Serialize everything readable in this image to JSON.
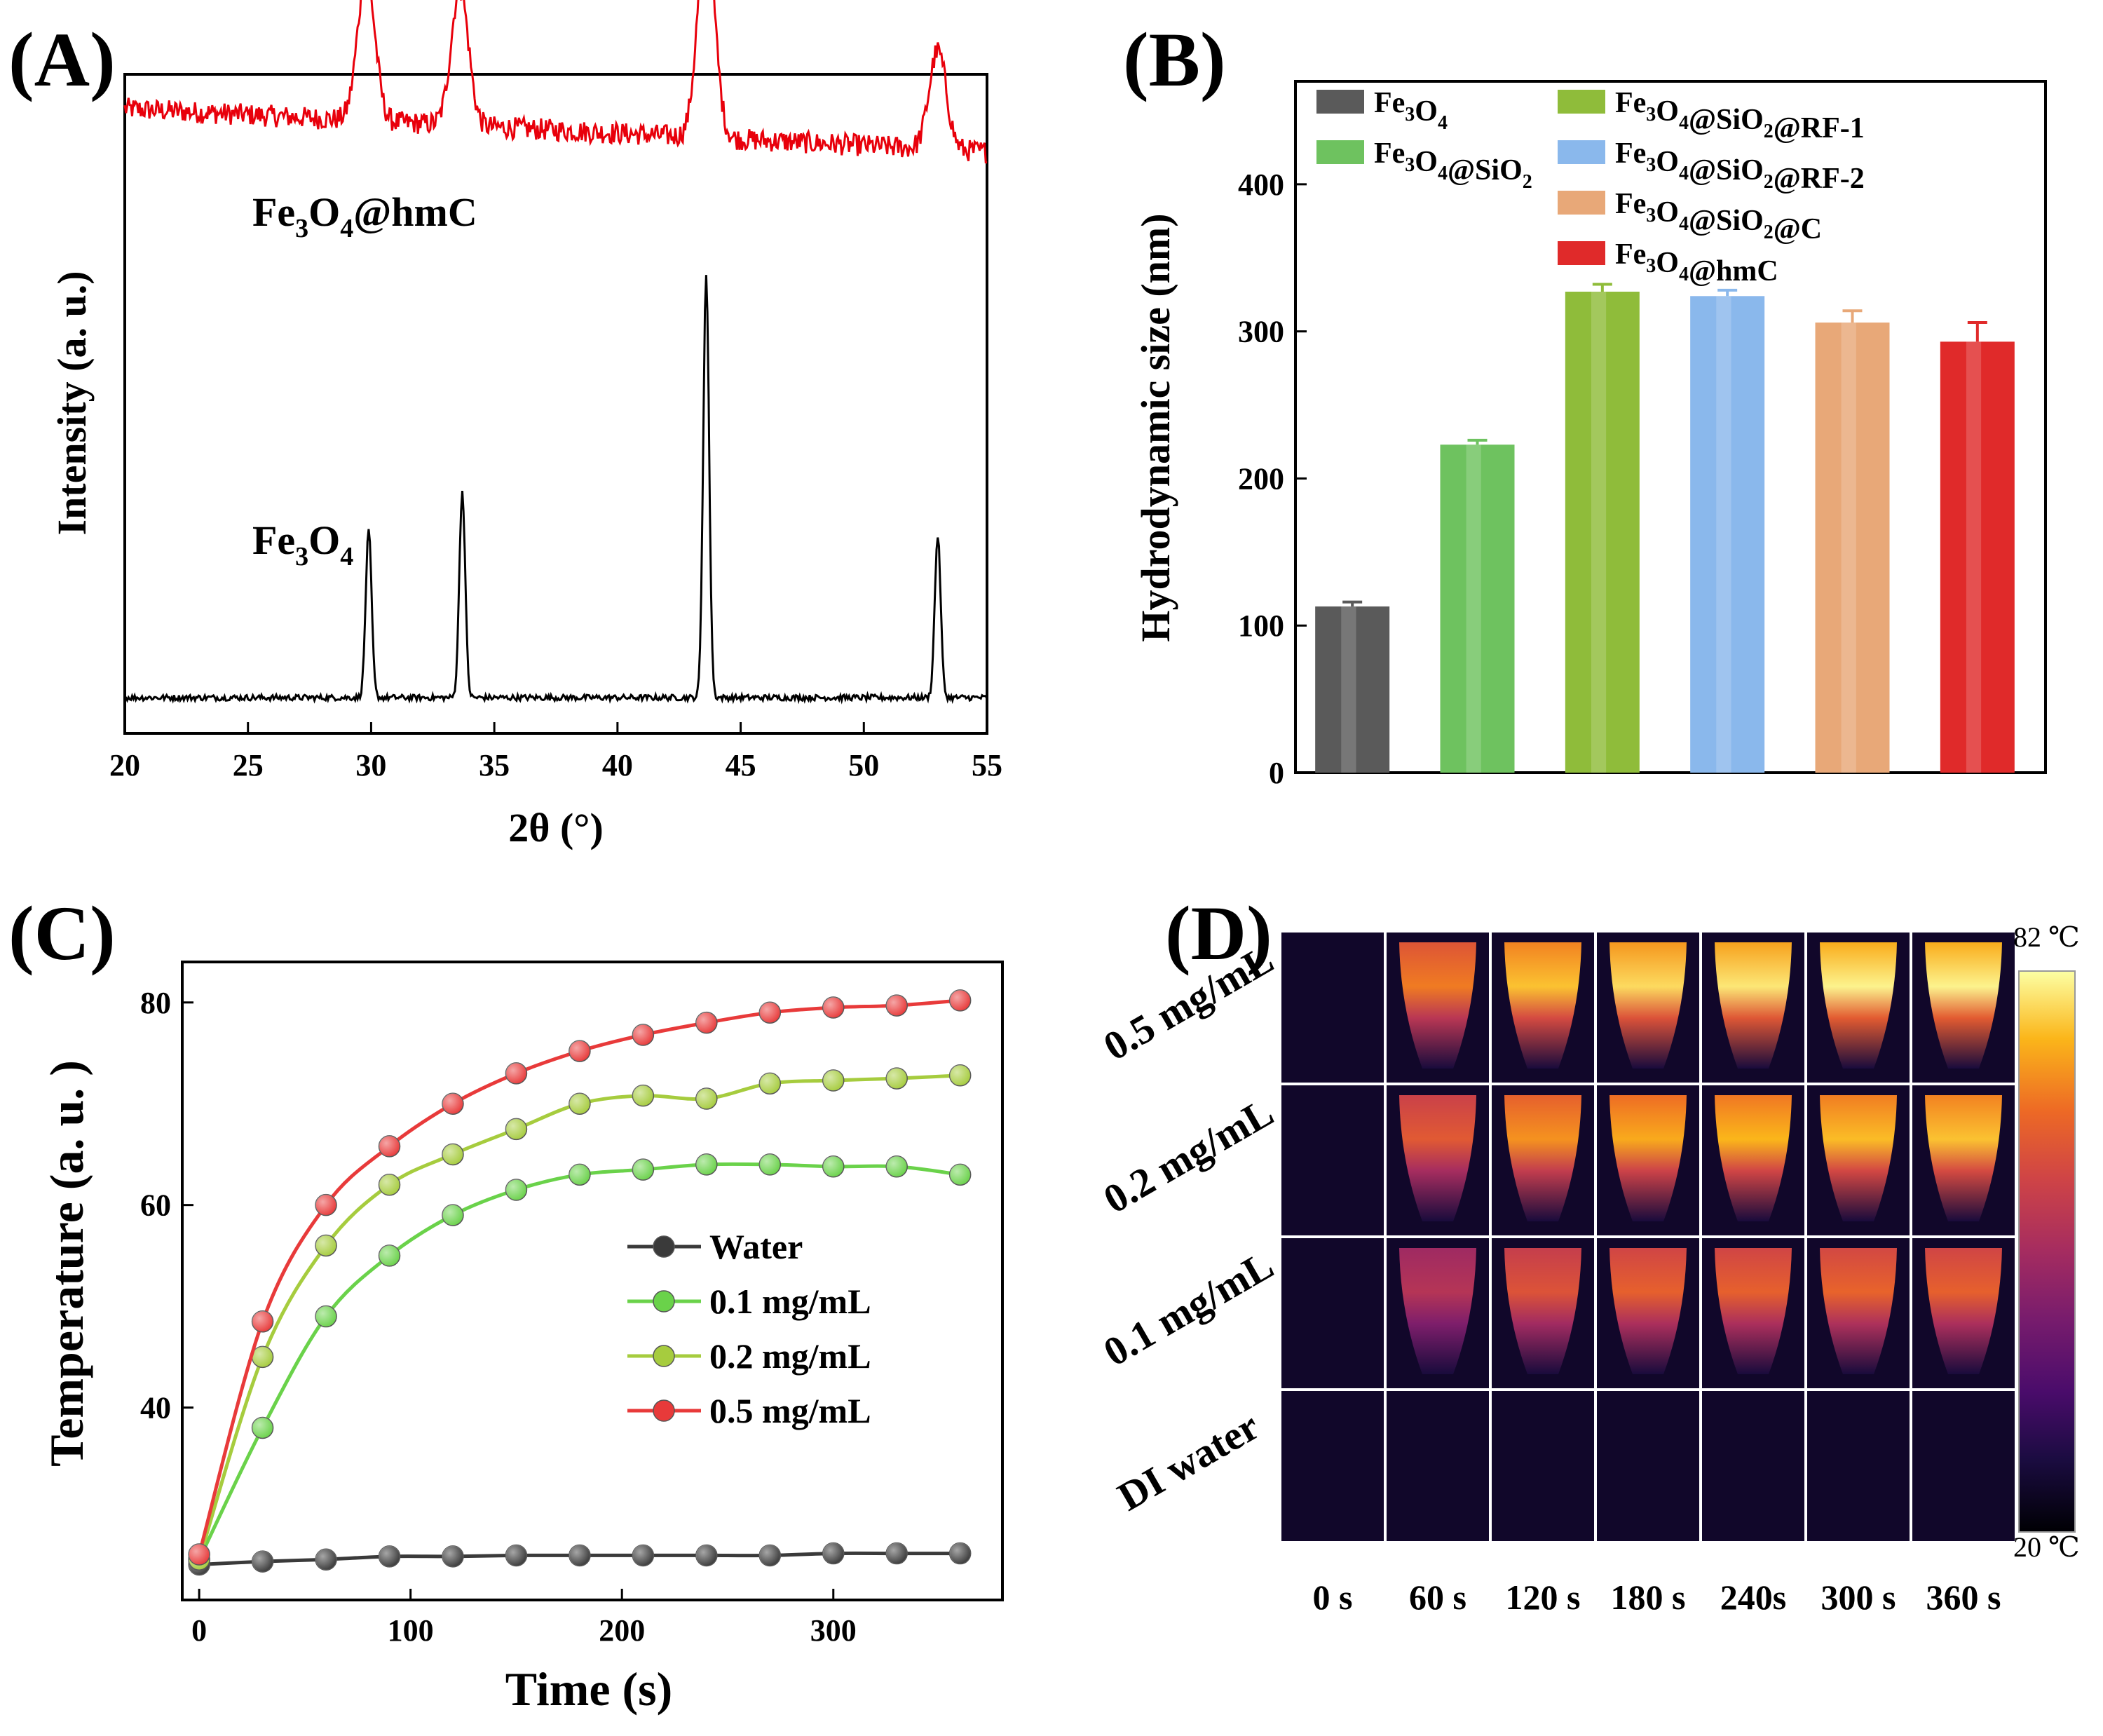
{
  "panel_labels": [
    "(A)",
    "(B)",
    "(C)",
    "(D)"
  ],
  "chart_data": [
    {
      "panel": "A",
      "type": "line",
      "xlabel": "2θ (°)",
      "ylabel": "Intensity (a. u.)",
      "xlim": [
        20,
        55
      ],
      "xticks": [
        20,
        25,
        30,
        35,
        40,
        45,
        50,
        55
      ],
      "series": [
        {
          "name": "Fe3O4@hmC",
          "label_parts": [
            "Fe",
            "3",
            "O",
            "4",
            "@hmC"
          ],
          "color": "#e8000b",
          "peaks_2theta": [
            29.8,
            33.6,
            43.6,
            53.0
          ],
          "peak_heights_au": [
            0.3,
            0.28,
            0.42,
            0.2
          ],
          "baseline_au": 1.2,
          "noise": "high"
        },
        {
          "name": "Fe3O4",
          "label_parts": [
            "Fe",
            "3",
            "O",
            "4"
          ],
          "color": "#000000",
          "peaks_2theta": [
            29.9,
            33.7,
            43.6,
            53.0
          ],
          "peak_heights_au": [
            0.34,
            0.42,
            0.86,
            0.33
          ],
          "baseline_au": 0.0,
          "noise": "low"
        }
      ]
    },
    {
      "panel": "B",
      "type": "bar",
      "ylabel": "Hydrodynamic size (nm)",
      "ylim": [
        0,
        470
      ],
      "yticks": [
        0,
        100,
        200,
        300,
        400
      ],
      "categories": [
        "Fe3O4",
        "Fe3O4@SiO2",
        "Fe3O4@SiO2@RF-1",
        "Fe3O4@SiO2@RF-2",
        "Fe3O4@SiO2@C",
        "Fe3O4@hmC"
      ],
      "legend_parts": [
        [
          "Fe",
          "3",
          "O",
          "4",
          ""
        ],
        [
          "Fe",
          "3",
          "O",
          "4",
          "@SiO",
          "2",
          ""
        ],
        [
          "Fe",
          "3",
          "O",
          "4",
          "@SiO",
          "2",
          "@RF-1"
        ],
        [
          "Fe",
          "3",
          "O",
          "4",
          "@SiO",
          "2",
          "@RF-2"
        ],
        [
          "Fe",
          "3",
          "O",
          "4",
          "@SiO",
          "2",
          "@C"
        ],
        [
          "Fe",
          "3",
          "O",
          "4",
          "@hmC"
        ]
      ],
      "values": [
        113,
        223,
        327,
        324,
        306,
        293
      ],
      "errors": [
        3,
        3,
        5,
        4,
        8,
        13
      ],
      "colors": [
        "#5a5a5a",
        "#6ec25f",
        "#8fbc3a",
        "#8ab8ec",
        "#e8a878",
        "#e02a2a"
      ],
      "legend_position": "top"
    },
    {
      "panel": "C",
      "type": "line",
      "xlabel": "Time (s)",
      "ylabel": "Temperature (a. u. )",
      "xlim": [
        -8,
        380
      ],
      "ylim": [
        21,
        84
      ],
      "xticks": [
        0,
        100,
        200,
        300
      ],
      "yticks": [
        40,
        60,
        80
      ],
      "x": [
        0,
        30,
        60,
        90,
        120,
        150,
        180,
        210,
        240,
        270,
        300,
        330,
        360
      ],
      "series": [
        {
          "name": "Water",
          "color": "#3a3a3a",
          "values": [
            24.5,
            24.8,
            25.0,
            25.3,
            25.3,
            25.4,
            25.4,
            25.4,
            25.4,
            25.4,
            25.6,
            25.6,
            25.6
          ]
        },
        {
          "name": "0.1 mg/mL",
          "color": "#6ad24a",
          "values": [
            25.0,
            38.0,
            49.0,
            55.0,
            59.0,
            61.5,
            63.0,
            63.5,
            64.0,
            64.0,
            63.8,
            63.8,
            63.0
          ]
        },
        {
          "name": "0.2 mg/mL",
          "color": "#a6cc3e",
          "values": [
            25.0,
            45.0,
            56.0,
            62.0,
            65.0,
            67.5,
            70.0,
            70.8,
            70.5,
            72.0,
            72.3,
            72.5,
            72.8
          ]
        },
        {
          "name": "0.5 mg/mL",
          "color": "#e83a3a",
          "values": [
            25.5,
            48.5,
            60.0,
            65.8,
            70.0,
            73.0,
            75.2,
            76.8,
            78.0,
            79.0,
            79.5,
            79.7,
            80.2
          ]
        }
      ],
      "legend_position": "center-right"
    },
    {
      "panel": "D",
      "type": "heatmap",
      "description_rows": [
        "0.5 mg/mL",
        "0.2 mg/mL",
        "0.1 mg/mL",
        "DI water"
      ],
      "columns": [
        "0 s",
        "60 s",
        "120 s",
        "180 s",
        "240s",
        "300 s",
        "360 s"
      ],
      "colorbar": {
        "max_label": "82 ℃",
        "min_label": "20 ℃",
        "max": 82,
        "min": 20
      },
      "intensity": [
        [
          0.02,
          0.78,
          0.9,
          0.94,
          0.96,
          0.98,
          0.98
        ],
        [
          0.02,
          0.7,
          0.82,
          0.86,
          0.88,
          0.89,
          0.9
        ],
        [
          0.01,
          0.55,
          0.68,
          0.72,
          0.72,
          0.73,
          0.72
        ],
        [
          0.0,
          0.02,
          0.02,
          0.02,
          0.02,
          0.02,
          0.02
        ]
      ]
    }
  ]
}
